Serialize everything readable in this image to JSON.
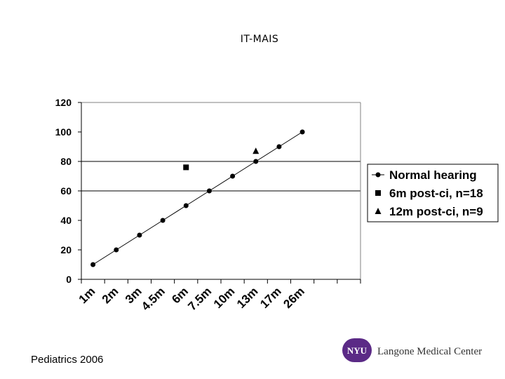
{
  "slide": {
    "title": "IT-MAIS",
    "citation": "Pediatrics 2006",
    "logo_text": "NYU",
    "logo_caption": "Langone Medical Center",
    "logo_color": "#5b2a86"
  },
  "chart_data": {
    "type": "scatter",
    "title": "IT-MAIS",
    "xlabel": "",
    "ylabel": "",
    "categories": [
      "1m",
      "2m",
      "3m",
      "4.5m",
      "6m",
      "7.5m",
      "10m",
      "13m",
      "17m",
      "26m"
    ],
    "ylim": [
      0,
      120
    ],
    "yticks": [
      0,
      20,
      40,
      60,
      80,
      100,
      120
    ],
    "gridlines": [
      60,
      80
    ],
    "legend_position": "right",
    "series": [
      {
        "name": "Normal hearing",
        "marker": "circle",
        "line": true,
        "values": [
          10,
          20,
          30,
          40,
          50,
          60,
          70,
          80,
          90,
          100
        ]
      },
      {
        "name": "6m post-ci, n=18",
        "marker": "square",
        "line": false,
        "points": [
          {
            "category": "6m",
            "value": 76
          }
        ]
      },
      {
        "name": "12m post-ci, n=9",
        "marker": "triangle",
        "line": false,
        "points": [
          {
            "category": "13m",
            "value": 87
          }
        ]
      }
    ]
  }
}
